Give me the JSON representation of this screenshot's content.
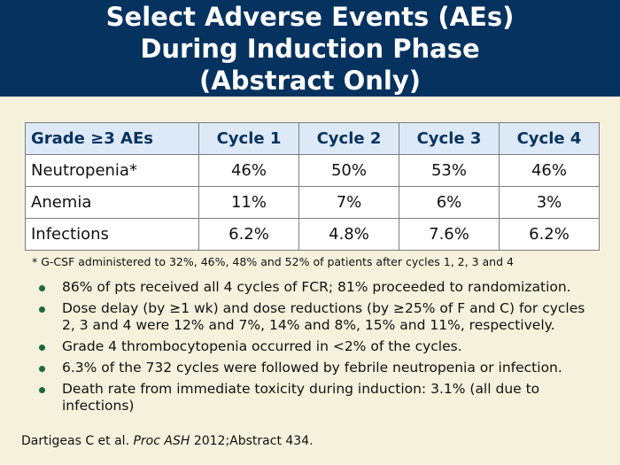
{
  "title": {
    "line1": "Select Adverse Events (AEs)",
    "line2": "During Induction Phase",
    "line3": "(Abstract Only)"
  },
  "table": {
    "headers": [
      "Grade ≥3 AEs",
      "Cycle 1",
      "Cycle 2",
      "Cycle 3",
      "Cycle 4"
    ],
    "rows": [
      [
        "Neutropenia*",
        "46%",
        "50%",
        "53%",
        "46%"
      ],
      [
        "Anemia",
        "11%",
        "7%",
        "6%",
        "3%"
      ],
      [
        "Infections",
        "6.2%",
        "4.8%",
        "7.6%",
        "6.2%"
      ]
    ]
  },
  "footnote": "* G-CSF administered to 32%, 46%, 48% and 52% of patients after cycles 1, 2, 3 and 4",
  "bullets": [
    "86% of pts received all 4 cycles of FCR; 81% proceeded to randomization.",
    "Dose delay (by ≥1 wk) and dose reductions (by ≥25% of F and C) for cycles 2, 3 and 4 were 12% and 7%, 14% and 8%, 15% and 11%, respectively.",
    "Grade 4 thrombocytopenia occurred in <2% of the cycles.",
    "6.3% of the 732 cycles were followed by febrile neutropenia or infection.",
    "Death rate from immediate toxicity during induction: 3.1% (all due to infections)"
  ],
  "citation": {
    "authors": "Dartigeas C et al.",
    "journal": "Proc ASH",
    "rest": "2012;Abstract 434."
  },
  "colors": {
    "title_band": "#06325f",
    "header_fill": "#dde9f7",
    "bullet": "#1d6a3c",
    "background": "#f6f1dc"
  }
}
